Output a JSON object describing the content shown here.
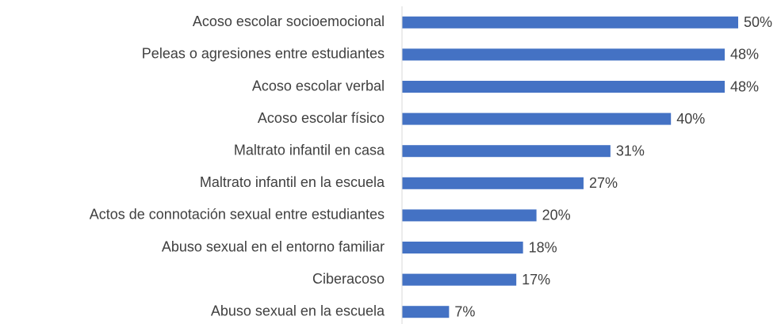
{
  "chart_data": {
    "type": "bar",
    "orientation": "horizontal",
    "categories": [
      "Acoso escolar socioemocional",
      "Peleas o agresiones entre estudiantes",
      "Acoso escolar verbal",
      "Acoso escolar físico",
      "Maltrato infantil en casa",
      "Maltrato infantil en la escuela",
      "Actos de connotación sexual entre estudiantes",
      "Abuso sexual en el entorno familiar",
      "Ciberacoso",
      "Abuso sexual en la escuela"
    ],
    "values": [
      50,
      48,
      48,
      40,
      31,
      27,
      20,
      18,
      17,
      7
    ],
    "value_labels": [
      "50%",
      "48%",
      "48%",
      "40%",
      "31%",
      "27%",
      "20%",
      "18%",
      "17%",
      "7%"
    ],
    "color": "#4472c4"
  }
}
